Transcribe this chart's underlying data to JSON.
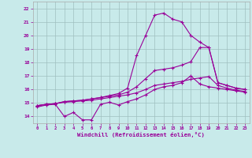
{
  "xlabel": "Windchill (Refroidissement éolien,°C)",
  "bg_color": "#c8eaea",
  "grid_color": "#9fbfbf",
  "line_color": "#990099",
  "xlim": [
    -0.5,
    23.5
  ],
  "ylim": [
    13.5,
    22.5
  ],
  "xticks": [
    0,
    1,
    2,
    3,
    4,
    5,
    6,
    7,
    8,
    9,
    10,
    11,
    12,
    13,
    14,
    15,
    16,
    17,
    18,
    19,
    20,
    21,
    22,
    23
  ],
  "yticks": [
    14,
    15,
    16,
    17,
    18,
    19,
    20,
    21,
    22
  ],
  "line1_x": [
    0,
    1,
    2,
    3,
    4,
    5,
    6,
    7,
    8,
    9,
    10,
    11,
    12,
    13,
    14,
    15,
    16,
    17,
    18,
    19,
    20,
    21,
    22,
    23
  ],
  "line1_y": [
    14.7,
    14.85,
    14.9,
    14.0,
    14.3,
    13.75,
    13.75,
    14.9,
    15.05,
    14.85,
    15.1,
    15.3,
    15.6,
    16.0,
    16.2,
    16.3,
    16.5,
    17.0,
    16.4,
    16.2,
    16.1,
    16.0,
    15.9,
    15.8
  ],
  "line2_x": [
    0,
    1,
    2,
    3,
    4,
    5,
    6,
    7,
    8,
    9,
    10,
    11,
    12,
    13,
    14,
    15,
    16,
    17,
    18,
    19,
    20,
    21,
    22,
    23
  ],
  "line2_y": [
    14.8,
    14.9,
    14.95,
    15.05,
    15.1,
    15.15,
    15.2,
    15.3,
    15.4,
    15.5,
    15.6,
    15.75,
    16.0,
    16.3,
    16.4,
    16.5,
    16.6,
    16.75,
    16.85,
    16.95,
    16.3,
    16.1,
    15.95,
    15.85
  ],
  "line3_x": [
    0,
    1,
    2,
    3,
    4,
    5,
    6,
    7,
    8,
    9,
    10,
    11,
    12,
    13,
    14,
    15,
    16,
    17,
    18,
    19,
    20,
    21,
    22,
    23
  ],
  "line3_y": [
    14.8,
    14.9,
    14.95,
    15.1,
    15.15,
    15.2,
    15.3,
    15.4,
    15.5,
    15.6,
    15.8,
    16.2,
    16.8,
    17.4,
    17.5,
    17.6,
    17.8,
    18.05,
    19.1,
    19.1,
    16.5,
    16.3,
    16.1,
    16.0
  ],
  "line4_x": [
    0,
    1,
    2,
    3,
    4,
    5,
    6,
    7,
    8,
    9,
    10,
    11,
    12,
    13,
    14,
    15,
    16,
    17,
    18,
    19,
    20,
    21,
    22,
    23
  ],
  "line4_y": [
    14.8,
    14.9,
    14.95,
    15.1,
    15.15,
    15.2,
    15.3,
    15.4,
    15.55,
    15.7,
    16.1,
    18.5,
    20.0,
    21.5,
    21.65,
    21.2,
    21.0,
    20.0,
    19.5,
    19.1,
    16.5,
    16.3,
    16.1,
    16.0
  ]
}
